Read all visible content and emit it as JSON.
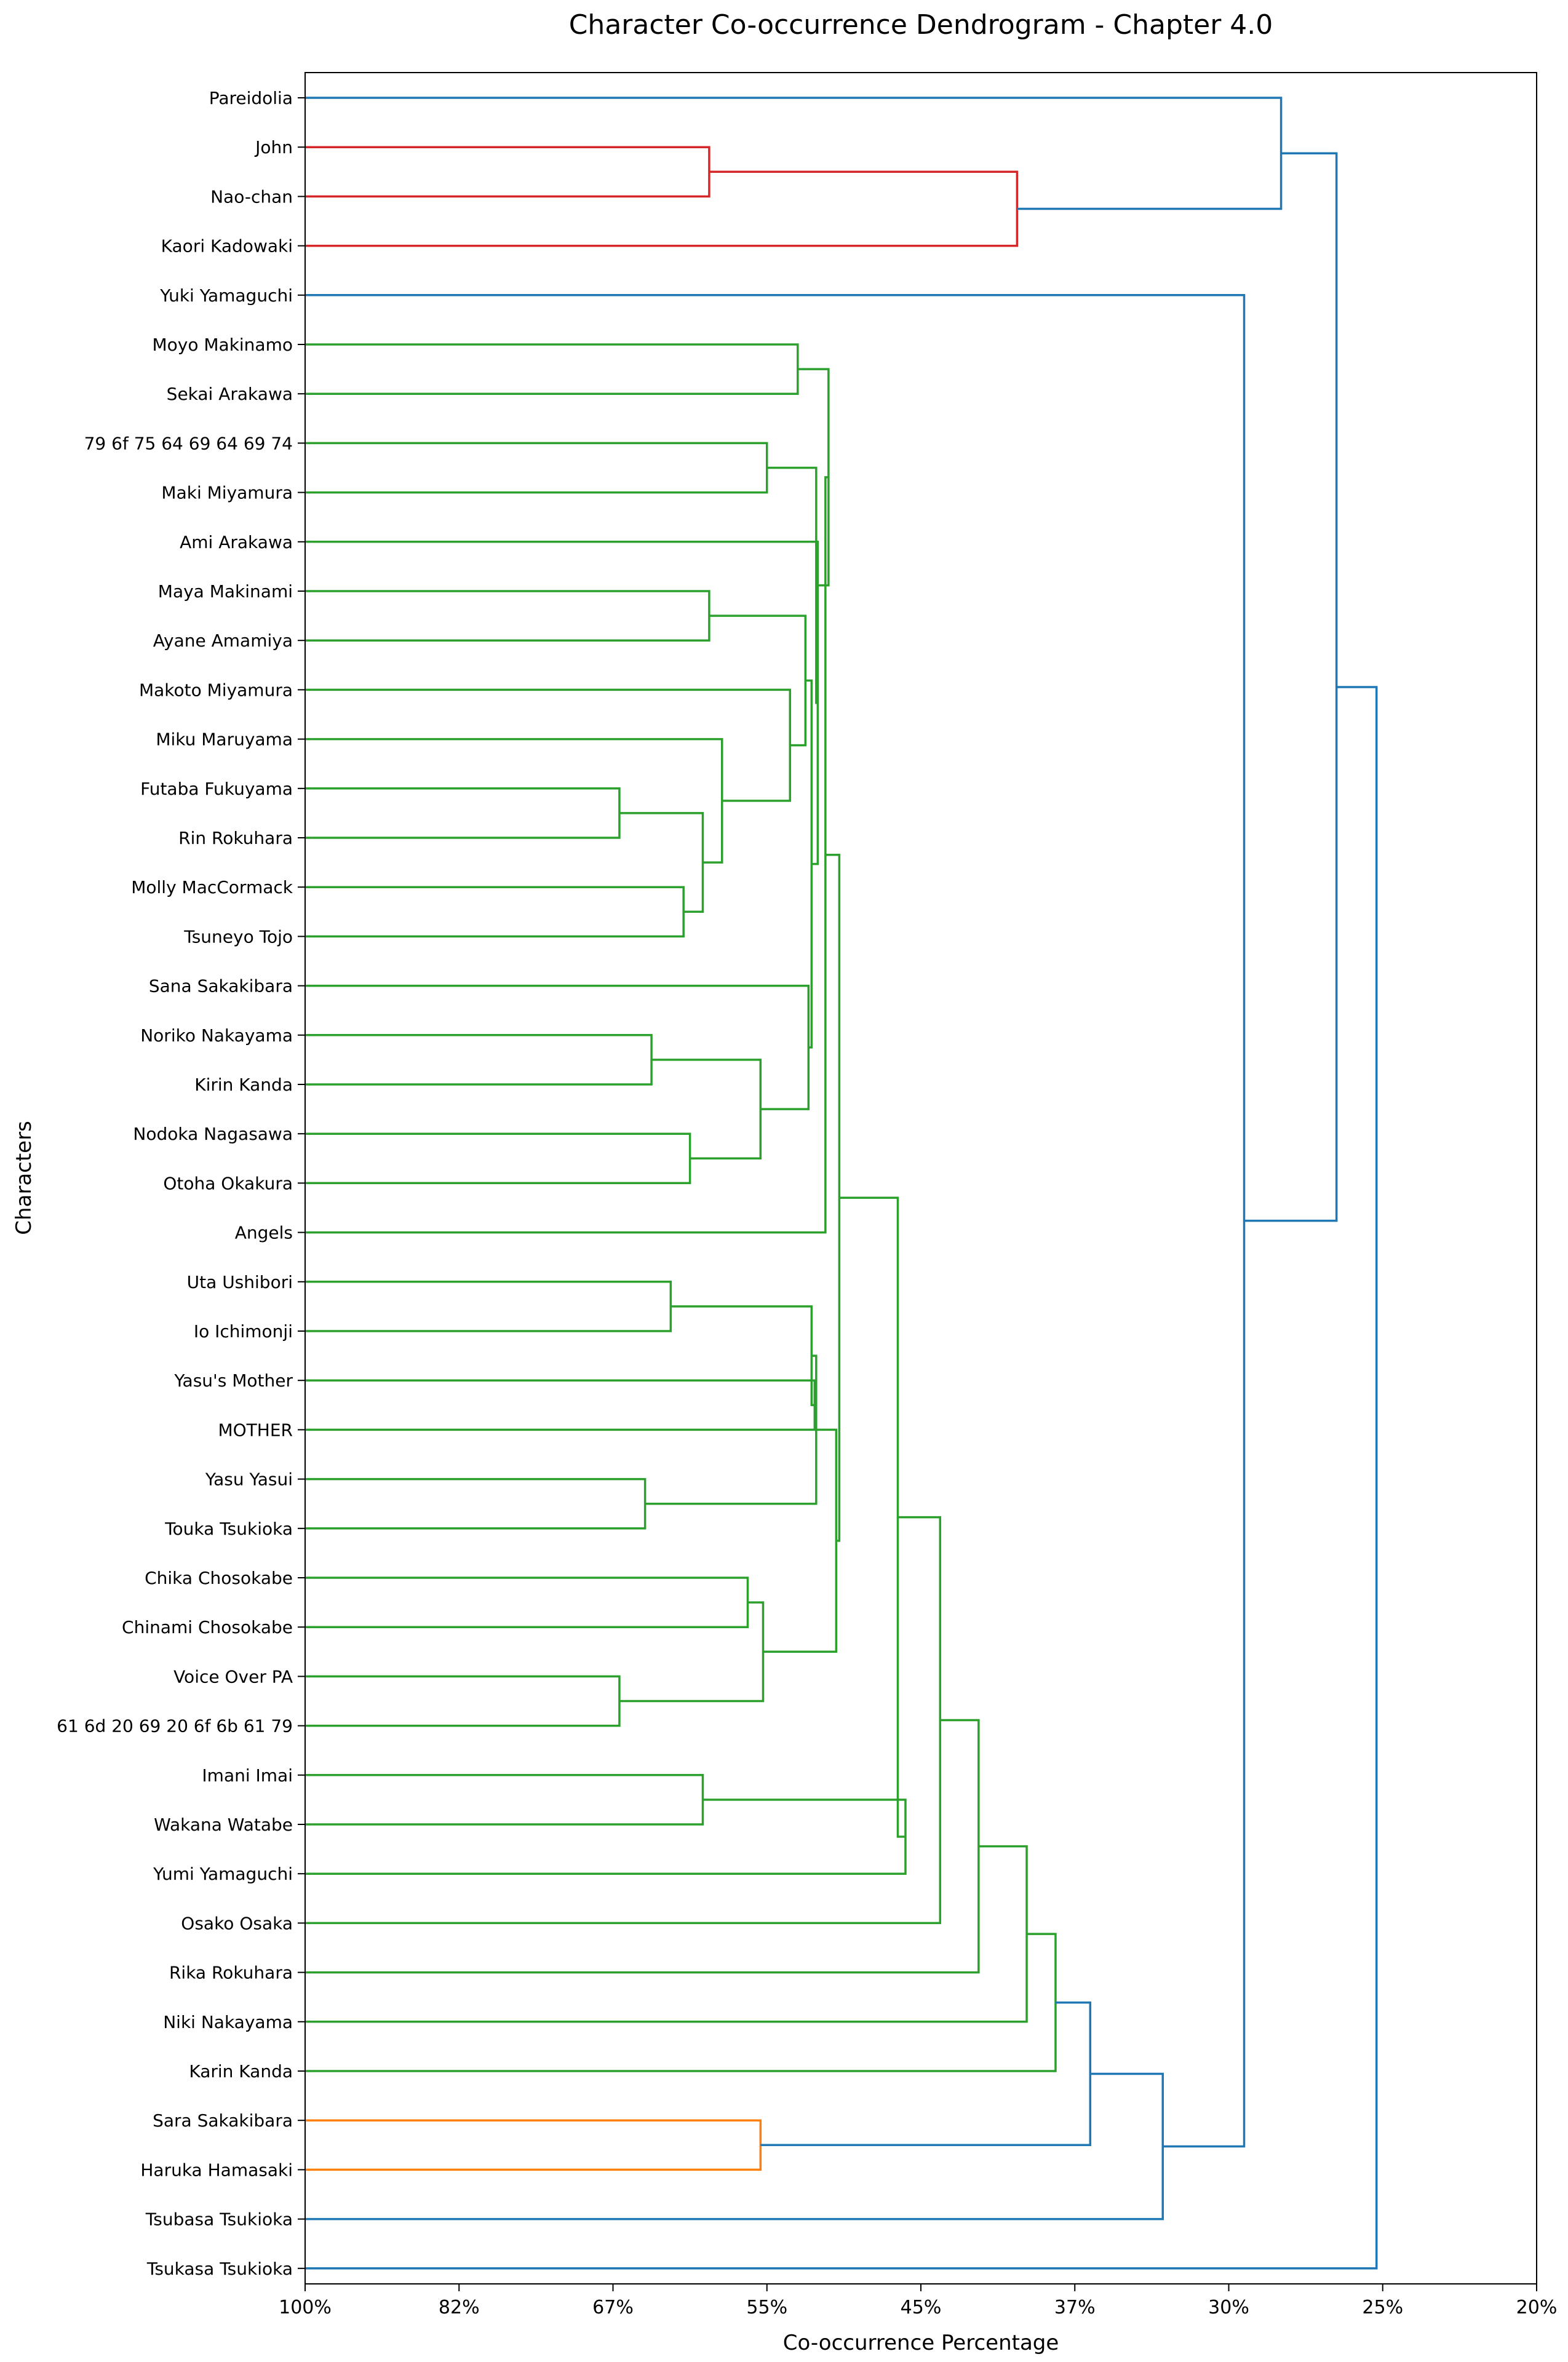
{
  "chart_data": {
    "type": "dendrogram",
    "title": "Character Co-occurrence Dendrogram - Chapter 4.0",
    "xlabel": "Co-occurrence Percentage",
    "ylabel": "Characters",
    "x_ticks": [
      "100%",
      "82%",
      "67%",
      "55%",
      "45%",
      "37%",
      "30%",
      "25%",
      "20%"
    ],
    "x_axis_mapping": "nonlinear: tick labels evenly spaced, 100% at left, 20% at right",
    "grid": false,
    "leaves": [
      "Pareidolia",
      "John",
      "Nao-chan",
      "Kaori Kadowaki",
      "Yuki Yamaguchi",
      "Moyo Makinamo",
      "Sekai Arakawa",
      "79 6f 75 64 69 64 69 74",
      "Maki Miyamura",
      "Ami Arakawa",
      "Maya Makinami",
      "Ayane Amamiya",
      "Makoto Miyamura",
      "Miku Maruyama",
      "Futaba Fukuyama",
      "Rin Rokuhara",
      "Molly MacCormack",
      "Tsuneyo Tojo",
      "Sana Sakakibara",
      "Noriko Nakayama",
      "Kirin Kanda",
      "Nodoka Nagasawa",
      "Otoha Okakura",
      "Angels",
      "Uta Ushibori",
      "Io Ichimonji",
      "Yasu's Mother",
      "MOTHER",
      "Yasu Yasui",
      "Touka Tsukioka",
      "Chika Chosokabe",
      "Chinami Chosokabe",
      "Voice Over PA",
      "61 6d 20 69 20 6f 6b 61 79",
      "Imani Imai",
      "Wakana Watabe",
      "Yumi Yamaguchi",
      "Osako Osaka",
      "Rika Rokuhara",
      "Niki Nakayama",
      "Karin Kanda",
      "Sara Sakakibara",
      "Haruka Hamasaki",
      "Tsubasa Tsukioka",
      "Tsukasa Tsukioka"
    ],
    "colors": {
      "red": "#d62728",
      "green": "#2ca02c",
      "orange": "#ff7f0e",
      "blue": "#1f77b4"
    },
    "merges": [
      {
        "left": "John",
        "right": "Nao-chan",
        "height": 0.595,
        "color": "red"
      },
      {
        "left": "John+Nao-chan",
        "right": "Kaori Kadowaki",
        "height": 0.4,
        "color": "red"
      },
      {
        "left": "Pareidolia",
        "right": "John+Nao-chan+Kaori Kadowaki",
        "height": 0.283,
        "color": "blue"
      },
      {
        "left": "Moyo Makinamo",
        "right": "Sekai Arakawa",
        "height": 0.53,
        "color": "green"
      },
      {
        "left": "79 6f 75 64 69 64 69 74",
        "right": "Maki Miyamura",
        "height": 0.55,
        "color": "green"
      },
      {
        "left": "Maya Makinami",
        "right": "Ayane Amamiya",
        "height": 0.595,
        "color": "green"
      },
      {
        "left": "Futaba Fukuyama",
        "right": "Rin Rokuhara",
        "height": 0.665,
        "color": "green"
      },
      {
        "left": "Molly MacCormack",
        "right": "Tsuneyo Tojo",
        "height": 0.615,
        "color": "green"
      },
      {
        "left": "Noriko Nakayama",
        "right": "Kirin Kanda",
        "height": 0.64,
        "color": "green"
      },
      {
        "left": "Nodoka Nagasawa",
        "right": "Otoha Okakura",
        "height": 0.61,
        "color": "green"
      },
      {
        "left": "Uta Ushibori",
        "right": "Io Ichimonji",
        "height": 0.625,
        "color": "green"
      },
      {
        "left": "Yasu Yasui",
        "right": "Touka Tsukioka",
        "height": 0.645,
        "color": "green"
      },
      {
        "left": "Chika Chosokabe",
        "right": "Chinami Chosokabe",
        "height": 0.565,
        "color": "green"
      },
      {
        "left": "Voice Over PA",
        "right": "61 6d 20 69 20 6f 6b 61 79",
        "height": 0.665,
        "color": "green"
      },
      {
        "left": "Imani Imai",
        "right": "Wakana Watabe",
        "height": 0.6,
        "color": "green"
      },
      {
        "left": "Sara Sakakibara",
        "right": "Haruka Hamasaki",
        "height": 0.555,
        "color": "orange"
      },
      {
        "left": "Yuki Yamaguchi",
        "right": "remaining cluster",
        "height": 0.295,
        "color": "blue"
      },
      {
        "left": "Pareidolia cluster",
        "right": "Yuki Yamaguchi cluster",
        "height": 0.265,
        "color": "blue"
      },
      {
        "left": "all others",
        "right": "Tsukasa Tsukioka",
        "height": 0.252,
        "color": "blue"
      }
    ]
  }
}
